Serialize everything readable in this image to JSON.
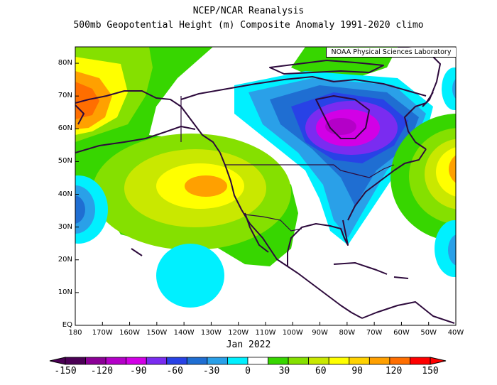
{
  "title_line1": "NCEP/NCAR Reanalysis",
  "title_line2": "500mb Geopotential Height (m) Composite Anomaly 1991-2020 climo",
  "credit": "NOAA Physical Sciences Laboratory",
  "date_label": "Jan 2022",
  "lat_labels": [
    "80N",
    "70N",
    "60N",
    "50N",
    "40N",
    "30N",
    "20N",
    "10N",
    "EQ"
  ],
  "lon_labels": [
    "180",
    "170W",
    "160W",
    "150W",
    "140W",
    "130W",
    "120W",
    "110W",
    "100W",
    "90W",
    "80W",
    "70W",
    "60W",
    "50W",
    "40W"
  ],
  "colorbar": {
    "labels": [
      "-150",
      "-120",
      "-90",
      "-60",
      "-30",
      "0",
      "30",
      "60",
      "90",
      "120",
      "150"
    ],
    "colors": [
      "#4b0055",
      "#8b0096",
      "#b400c8",
      "#d200e6",
      "#7a2cf0",
      "#2842e6",
      "#1f6ed2",
      "#2aa0e8",
      "#00f0ff",
      "#ffffff",
      "#37d600",
      "#85e000",
      "#c9e800",
      "#ffff00",
      "#ffd200",
      "#ffa000",
      "#ff6e00",
      "#ff0000"
    ]
  },
  "map": {
    "projection": "equirectangular",
    "lon_range": [
      -180,
      -40
    ],
    "lat_range": [
      0,
      85
    ],
    "features": [
      {
        "name": "Aleutian / East Siberia ridge",
        "center": [
          -177,
          68
        ],
        "anomaly_m": 120
      },
      {
        "name": "Northeast Pacific ridge",
        "center": [
          -130,
          43
        ],
        "anomaly_m": 90
      },
      {
        "name": "Central Canada trough",
        "center": [
          -80,
          62
        ],
        "anomaly_m": -120
      },
      {
        "name": "Western Atlantic ridge",
        "center": [
          -42,
          48
        ],
        "anomaly_m": 120
      },
      {
        "name": "Subtropical Pacific trough (west edge)",
        "center": [
          -180,
          35
        ],
        "anomaly_m": -60
      },
      {
        "name": "Hawaii-region low",
        "center": [
          -133,
          15
        ],
        "anomaly_m": -30
      },
      {
        "name": "Atlantic low near Caribbean",
        "center": [
          -42,
          22
        ],
        "anomaly_m": -30
      },
      {
        "name": "Arctic low near Greenland",
        "center": [
          -40,
          72
        ],
        "anomaly_m": -30
      }
    ]
  }
}
